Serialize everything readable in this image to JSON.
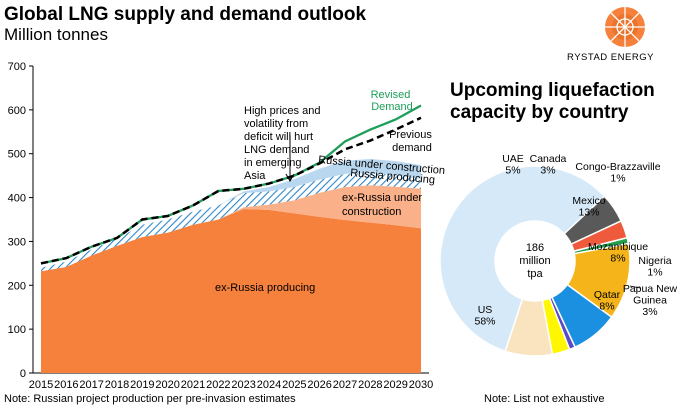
{
  "header": {
    "title": "Global LNG supply and demand outlook",
    "subtitle": "Million tonnes",
    "brand": "RYSTAD ENERGY"
  },
  "right_title": [
    "Upcoming liquefaction",
    "capacity by country"
  ],
  "notes": {
    "left": "Note: Russian project production per pre-invasion estimates",
    "right": "Note: List not exhaustive"
  },
  "colors": {
    "ex_russia_producing": "#F6813C",
    "ex_russia_construction": "#FAB089",
    "russia_producing": "#2E86C8",
    "russia_construction": "#B9D7EE",
    "revised_demand": "#1E9E5A",
    "previous_demand": "#000000"
  },
  "chart_data": [
    {
      "type": "area",
      "x": [
        2015,
        2016,
        2017,
        2018,
        2019,
        2020,
        2021,
        2022,
        2023,
        2024,
        2025,
        2026,
        2027,
        2028,
        2029,
        2030
      ],
      "ylim": [
        0,
        700
      ],
      "yticks": [
        0,
        100,
        200,
        300,
        400,
        500,
        600,
        700
      ],
      "stacked_series": [
        {
          "name": "ex-Russia producing",
          "values": [
            232,
            242,
            268,
            290,
            310,
            320,
            338,
            350,
            374,
            372,
            364,
            356,
            349,
            343,
            337,
            330
          ],
          "color": "#F6813C"
        },
        {
          "name": "ex-Russia under construction",
          "values": [
            0,
            0,
            0,
            0,
            0,
            0,
            0,
            0,
            4,
            12,
            30,
            55,
            75,
            85,
            88,
            90
          ],
          "color": "#FAB089"
        },
        {
          "name": "Russia producing",
          "values": [
            8,
            12,
            14,
            16,
            28,
            30,
            30,
            32,
            32,
            30,
            30,
            30,
            30,
            28,
            26,
            22
          ],
          "color": "#2E86C8"
        },
        {
          "name": "Russia under construction",
          "values": [
            0,
            0,
            0,
            0,
            0,
            0,
            0,
            0,
            4,
            10,
            18,
            25,
            30,
            32,
            32,
            32
          ],
          "color": "#B9D7EE"
        }
      ],
      "line_series": [
        {
          "name": "Revised Demand",
          "values": [
            250,
            262,
            288,
            308,
            350,
            358,
            382,
            415,
            420,
            432,
            450,
            480,
            528,
            555,
            578,
            610
          ],
          "color": "#1E9E5A"
        },
        {
          "name": "Previous demand",
          "values": [
            250,
            262,
            288,
            308,
            350,
            358,
            382,
            415,
            420,
            432,
            450,
            478,
            510,
            530,
            555,
            582
          ],
          "color": "#000000"
        }
      ],
      "annotations": [
        {
          "lines": [
            "High prices and",
            "volatility from",
            "deficit will hurt",
            "LNG demand",
            "in emerging",
            "Asia"
          ]
        },
        {
          "lines": [
            "Revised",
            "Demand"
          ]
        },
        {
          "lines": [
            "Previous",
            "demand"
          ]
        },
        {
          "lines": [
            "Russia under construction"
          ]
        },
        {
          "lines": [
            "Russia producing"
          ]
        },
        {
          "lines": [
            "ex-Russia under",
            "construction"
          ]
        },
        {
          "lines": [
            "ex-Russia producing"
          ]
        }
      ]
    },
    {
      "type": "pie",
      "donut": true,
      "center_label": [
        "186",
        "million",
        "tpa"
      ],
      "slices": [
        {
          "label": "US",
          "pct": "58%",
          "value": 58,
          "color": "#D6E9F8"
        },
        {
          "label": "UAE",
          "pct": "5%",
          "value": 5,
          "color": "#595959"
        },
        {
          "label": "Canada",
          "pct": "3%",
          "value": 3,
          "color": "#F05A3C"
        },
        {
          "label": "Congo-Brazzaville",
          "pct": "1%",
          "value": 1,
          "color": "#22A04B"
        },
        {
          "label": "Mexico",
          "pct": "13%",
          "value": 13,
          "color": "#F5B51A"
        },
        {
          "label": "Mozambique",
          "pct": "8%",
          "value": 8,
          "color": "#1B8FE0"
        },
        {
          "label": "Nigeria",
          "pct": "1%",
          "value": 1,
          "color": "#5A4BC4"
        },
        {
          "label": "Papua New Guinea",
          "pct": "3%",
          "value": 3,
          "color": "#FFF700"
        },
        {
          "label": "Qatar",
          "pct": "8%",
          "value": 8,
          "color": "#FAE4BF"
        }
      ]
    }
  ]
}
